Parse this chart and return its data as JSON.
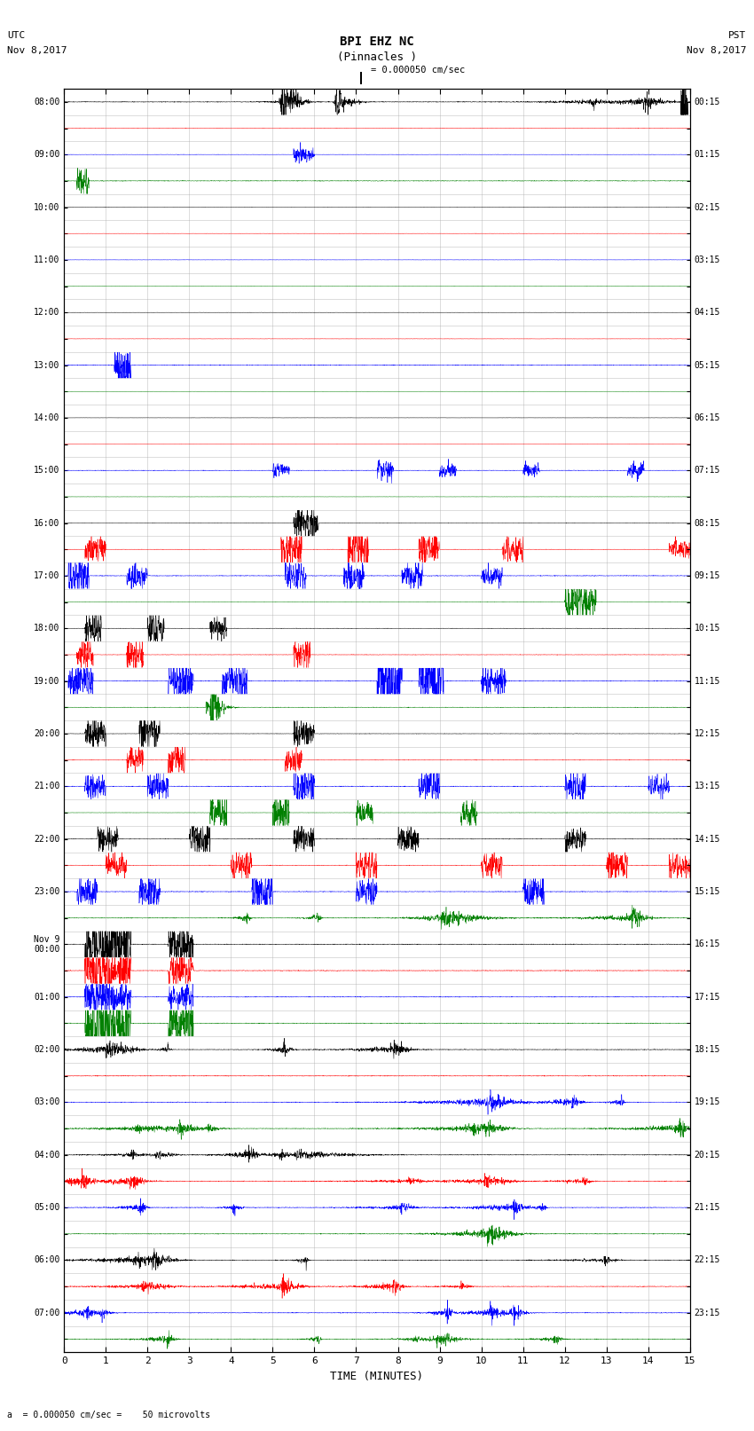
{
  "title_line1": "BPI EHZ NC",
  "title_line2": "(Pinnacles )",
  "scale_text": "= 0.000050 cm/sec",
  "bottom_scale_text": "= 0.000050 cm/sec =    50 microvolts",
  "left_label_line1": "UTC",
  "left_label_line2": "Nov 8,2017",
  "right_label_line1": "PST",
  "right_label_line2": "Nov 8,2017",
  "xlabel": "TIME (MINUTES)",
  "left_times": [
    "08:00",
    "",
    "09:00",
    "",
    "10:00",
    "",
    "11:00",
    "",
    "12:00",
    "",
    "13:00",
    "",
    "14:00",
    "",
    "15:00",
    "",
    "16:00",
    "",
    "17:00",
    "",
    "18:00",
    "",
    "19:00",
    "",
    "20:00",
    "",
    "21:00",
    "",
    "22:00",
    "",
    "23:00",
    "",
    "Nov 9\n00:00",
    "",
    "01:00",
    "",
    "02:00",
    "",
    "03:00",
    "",
    "04:00",
    "",
    "05:00",
    "",
    "06:00",
    "",
    "07:00",
    ""
  ],
  "right_times": [
    "00:15",
    "",
    "01:15",
    "",
    "02:15",
    "",
    "03:15",
    "",
    "04:15",
    "",
    "05:15",
    "",
    "06:15",
    "",
    "07:15",
    "",
    "08:15",
    "",
    "09:15",
    "",
    "10:15",
    "",
    "11:15",
    "",
    "12:15",
    "",
    "13:15",
    "",
    "14:15",
    "",
    "15:15",
    "",
    "16:15",
    "",
    "17:15",
    "",
    "18:15",
    "",
    "19:15",
    "",
    "20:15",
    "",
    "21:15",
    "",
    "22:15",
    "",
    "23:15",
    ""
  ],
  "n_rows": 48,
  "n_cols": 15,
  "bg_color": "#ffffff",
  "grid_color": "#aaaaaa",
  "trace_colors_cycle": [
    "black",
    "red",
    "blue",
    "green"
  ],
  "fig_width": 8.5,
  "fig_height": 16.13,
  "dpi": 100,
  "noise_amp": 0.012,
  "burst_amp_low": 0.25,
  "burst_amp_high": 0.8,
  "trace_scale": 0.45
}
